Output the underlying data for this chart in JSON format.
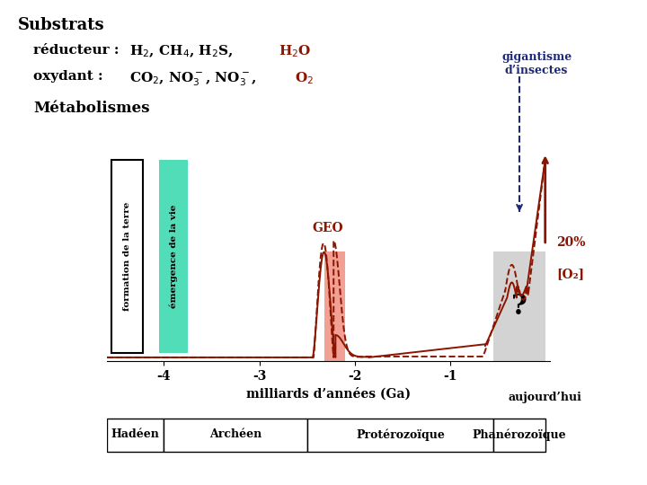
{
  "title": "Substrats",
  "reducteur_black": "H₂, CH₄, H₂S, ",
  "reducteur_red": "H₂O",
  "oxydant_black": "CO₂, NO₃⁻, NO₃⁻, ",
  "oxydant_red": "O₂",
  "metabolismes": "Métabolismes",
  "formation_terre": "formation de la terre",
  "emergence_vie": "émergence de la vie",
  "geo_label": "GEO",
  "gigantisme": "gigantisme\nd’insectes",
  "vingt_pct": "20%",
  "o2_bracket": "[O₂]",
  "aujourdhui": "aujourd’hui",
  "xlabel": "milliards d’années (Ga)",
  "eras": [
    {
      "label": "Hadéen",
      "xmin": -4.6,
      "xmax": -4.0
    },
    {
      "label": "Archéen",
      "xmin": -4.0,
      "xmax": -2.5
    },
    {
      "label": "Protérozоïque",
      "xmin": -2.5,
      "xmax": -0.54
    },
    {
      "label": "Phanérozоïque",
      "xmin": -0.54,
      "xmax": 0.0
    }
  ],
  "xmin": -4.6,
  "xmax": 0.05,
  "colors": {
    "dark_red": "#8B1500",
    "teal": "#50DDB8",
    "salmon": "#F09080",
    "gray": "#C8C8C8",
    "navy": "#1C2878",
    "black": "#000000",
    "white": "#FFFFFF"
  }
}
